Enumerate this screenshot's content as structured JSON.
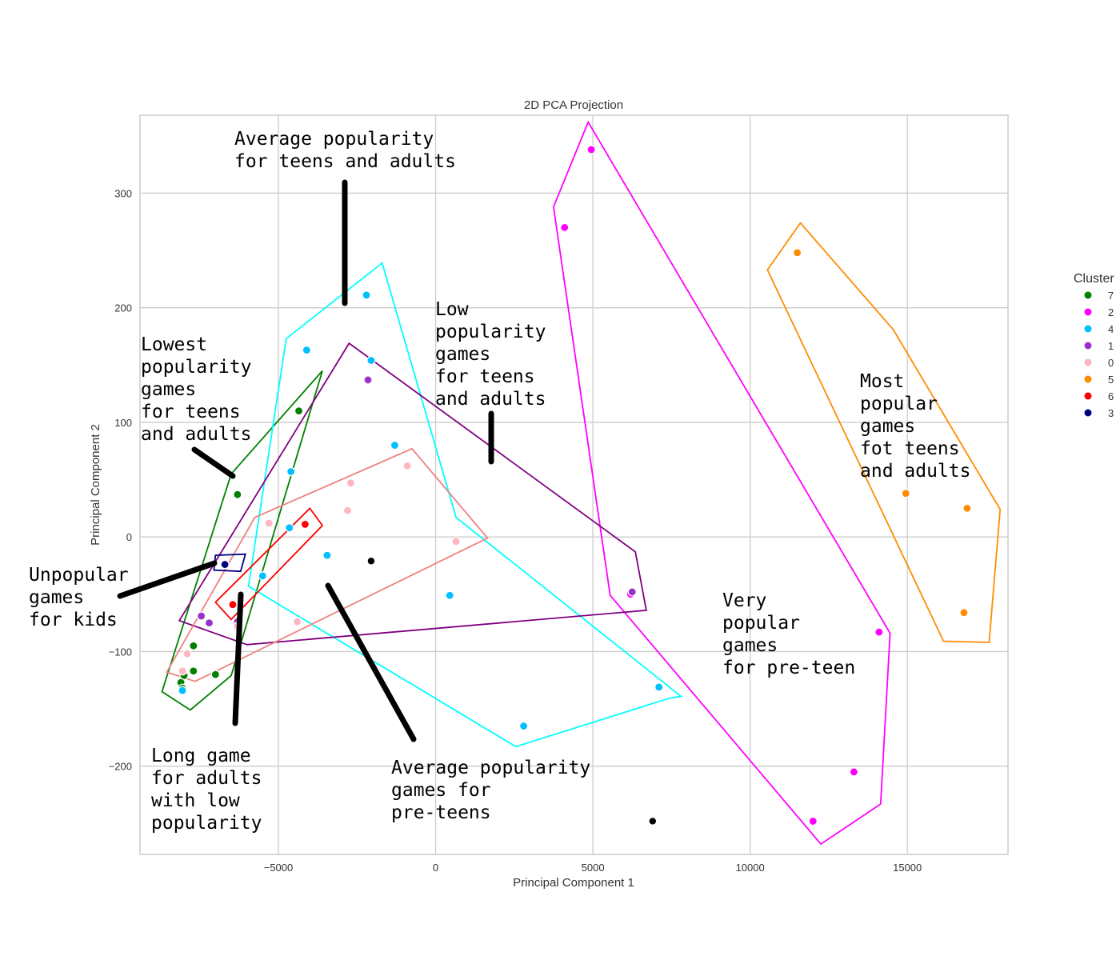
{
  "chart_data": {
    "type": "scatter",
    "title": "2D PCA Projection",
    "xlabel": "Principal Component 1",
    "ylabel": "Principal Component 2",
    "xlim": [
      -9400,
      18200
    ],
    "ylim": [
      -277,
      368
    ],
    "xticks": [
      -5000,
      0,
      5000,
      10000,
      15000
    ],
    "xtick_labels": [
      "−5000",
      "0",
      "5000",
      "10000",
      "15000"
    ],
    "yticks": [
      -200,
      -100,
      0,
      100,
      200,
      300
    ],
    "ytick_labels": [
      "−200",
      "−100",
      "0",
      "100",
      "200",
      "300"
    ],
    "grid": true,
    "legend": {
      "title": "Cluster",
      "placement": "right",
      "entries": [
        {
          "label": "7",
          "color": "#008000"
        },
        {
          "label": "2",
          "color": "#ff00ff"
        },
        {
          "label": "4",
          "color": "#00bfff"
        },
        {
          "label": "1",
          "color": "#9932cc"
        },
        {
          "label": "0",
          "color": "#ffb6c1"
        },
        {
          "label": "5",
          "color": "#ff8c00"
        },
        {
          "label": "6",
          "color": "#ff0000"
        },
        {
          "label": "3",
          "color": "#000080"
        }
      ]
    },
    "series": [
      {
        "name": "7",
        "color": "#008000",
        "hull_color": "#008000",
        "points": [
          [
            -4350,
            110
          ],
          [
            -6300,
            37
          ],
          [
            -7700,
            -95
          ],
          [
            -7700,
            -117
          ],
          [
            -7000,
            -120
          ],
          [
            -8000,
            -121
          ],
          [
            -8100,
            -127
          ],
          [
            -8050,
            -132
          ]
        ],
        "hull": [
          [
            -3600,
            145
          ],
          [
            -6500,
            -121
          ],
          [
            -7800,
            -151
          ],
          [
            -8700,
            -135
          ],
          [
            -6500,
            55
          ]
        ]
      },
      {
        "name": "2",
        "color": "#ff00ff",
        "hull_color": "#ff00ff",
        "points": [
          [
            4950,
            338
          ],
          [
            4100,
            270
          ],
          [
            6200,
            -50
          ],
          [
            14100,
            -83
          ],
          [
            13300,
            -205
          ],
          [
            12000,
            -248
          ]
        ],
        "hull": [
          [
            4850,
            362
          ],
          [
            14450,
            -84
          ],
          [
            14150,
            -233
          ],
          [
            12250,
            -268
          ],
          [
            5550,
            -51
          ],
          [
            3750,
            288
          ]
        ]
      },
      {
        "name": "4",
        "color": "#00bfff",
        "hull_color": "#00ffff",
        "points": [
          [
            -2200,
            211
          ],
          [
            -4100,
            163
          ],
          [
            -2050,
            154
          ],
          [
            -1300,
            80
          ],
          [
            -4600,
            57
          ],
          [
            -4650,
            8
          ],
          [
            -3450,
            -16
          ],
          [
            -5500,
            -34
          ],
          [
            450,
            -51
          ],
          [
            7100,
            -131
          ],
          [
            2800,
            -165
          ],
          [
            -8050,
            -134
          ]
        ],
        "hull": [
          [
            -1700,
            239
          ],
          [
            650,
            17
          ],
          [
            7800,
            -139
          ],
          [
            7400,
            -141
          ],
          [
            2550,
            -183
          ],
          [
            -5950,
            -43
          ],
          [
            -4750,
            173
          ]
        ]
      },
      {
        "name": "1",
        "color": "#9932cc",
        "hull_color": "#800080",
        "points": [
          [
            -2150,
            137
          ],
          [
            6250,
            -48
          ],
          [
            -7450,
            -69
          ],
          [
            -7200,
            -75
          ],
          [
            -6300,
            -74
          ]
        ],
        "hull": [
          [
            -2750,
            169
          ],
          [
            6350,
            -13
          ],
          [
            6700,
            -64
          ],
          [
            -6000,
            -94
          ],
          [
            -8150,
            -73
          ]
        ]
      },
      {
        "name": "0",
        "color": "#ffb6c1",
        "hull_color": "#f08080",
        "points": [
          [
            -900,
            62
          ],
          [
            -2700,
            47
          ],
          [
            -2800,
            23
          ],
          [
            -5300,
            12
          ],
          [
            650,
            -4
          ],
          [
            -4400,
            -74
          ],
          [
            -6300,
            -78
          ],
          [
            -7900,
            -102
          ],
          [
            -8050,
            -117
          ]
        ],
        "hull": [
          [
            -750,
            77
          ],
          [
            1650,
            -1
          ],
          [
            -7650,
            -126
          ],
          [
            -8550,
            -118
          ],
          [
            -5750,
            17
          ]
        ]
      },
      {
        "name": "5",
        "color": "#ff8c00",
        "hull_color": "#ff8c00",
        "points": [
          [
            11500,
            248
          ],
          [
            14950,
            38
          ],
          [
            16900,
            25
          ],
          [
            16800,
            -66
          ]
        ],
        "hull": [
          [
            11600,
            274
          ],
          [
            14550,
            181
          ],
          [
            17950,
            24
          ],
          [
            17600,
            -92
          ],
          [
            16150,
            -91
          ],
          [
            10550,
            233
          ]
        ]
      },
      {
        "name": "6",
        "color": "#ff0000",
        "hull_color": "#ff0000",
        "points": [
          [
            -4150,
            11
          ],
          [
            -6450,
            -59
          ]
        ],
        "hull": [
          [
            -4000,
            25
          ],
          [
            -3600,
            10
          ],
          [
            -6500,
            -72
          ],
          [
            -7000,
            -57
          ]
        ]
      },
      {
        "name": "3",
        "color": "#000080",
        "hull_color": "#000080",
        "points": [
          [
            -6700,
            -24
          ]
        ],
        "hull": [
          [
            -7000,
            -16
          ],
          [
            -6050,
            -15
          ],
          [
            -6200,
            -30
          ],
          [
            -7050,
            -29
          ]
        ]
      }
    ],
    "unassigned_points": [
      [
        -2050,
        -21
      ],
      [
        6900,
        -248
      ]
    ],
    "annotations": [
      {
        "lines": [
          "Average popularity",
          "for teens and adults"
        ]
      },
      {
        "lines": [
          "Low",
          "popularity",
          "games",
          "for teens",
          "and adults"
        ]
      },
      {
        "lines": [
          "Lowest",
          "popularity",
          "games",
          "for teens",
          "and adults"
        ]
      },
      {
        "lines": [
          "Most",
          "popular",
          "games",
          "fot teens",
          "and adults"
        ]
      },
      {
        "lines": [
          "Unpopular",
          "games",
          "for kids"
        ]
      },
      {
        "lines": [
          "Very",
          "popular",
          "games",
          "for pre-teen"
        ]
      },
      {
        "lines": [
          "Long game",
          "for adults",
          "with low",
          "popularity"
        ]
      },
      {
        "lines": [
          "Average popularity",
          "games for",
          "pre-teens"
        ]
      }
    ]
  }
}
